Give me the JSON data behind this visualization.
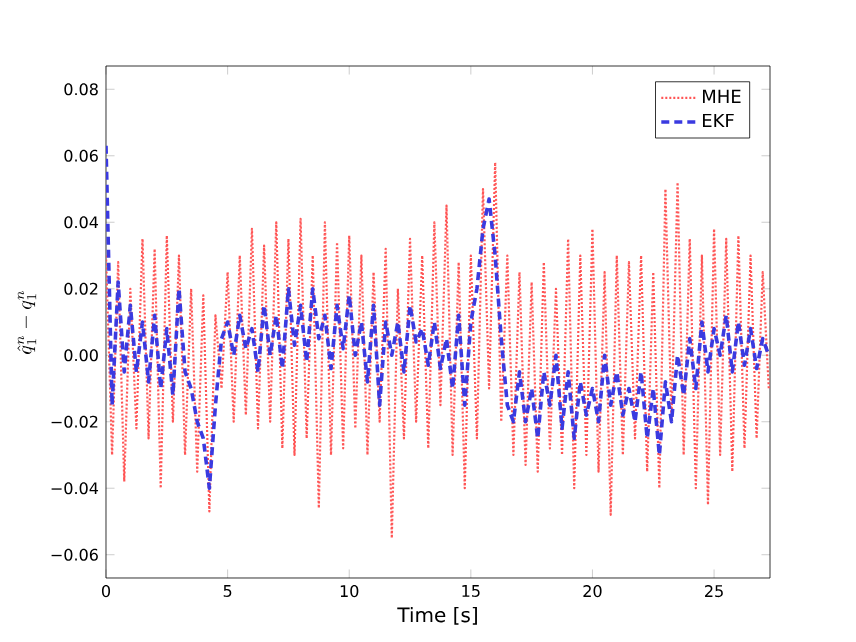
{
  "chart_data": {
    "type": "line",
    "xlabel": "Time [s]",
    "ylabel": "\\hat{q}_1^n - q_1^n",
    "x": [
      0,
      0.25,
      0.5,
      0.75,
      1,
      1.25,
      1.5,
      1.75,
      2,
      2.25,
      2.5,
      2.75,
      3,
      3.25,
      3.5,
      3.75,
      4,
      4.25,
      4.5,
      4.75,
      5,
      5.25,
      5.5,
      5.75,
      6,
      6.25,
      6.5,
      6.75,
      7,
      7.25,
      7.5,
      7.75,
      8,
      8.25,
      8.5,
      8.75,
      9,
      9.25,
      9.5,
      9.75,
      10,
      10.25,
      10.5,
      10.75,
      11,
      11.25,
      11.5,
      11.75,
      12,
      12.25,
      12.5,
      12.75,
      13,
      13.25,
      13.5,
      13.75,
      14,
      14.25,
      14.5,
      14.75,
      15,
      15.25,
      15.5,
      15.75,
      16,
      16.25,
      16.5,
      16.75,
      17,
      17.25,
      17.5,
      17.75,
      18,
      18.25,
      18.5,
      18.75,
      19,
      19.25,
      19.5,
      19.75,
      20,
      20.25,
      20.5,
      20.75,
      21,
      21.25,
      21.5,
      21.75,
      22,
      22.25,
      22.5,
      22.75,
      23,
      23.25,
      23.5,
      23.75,
      24,
      24.25,
      24.5,
      24.75,
      25,
      25.25,
      25.5,
      25.75,
      26,
      26.25,
      26.5,
      26.75,
      27,
      27.25
    ],
    "series": [
      {
        "name": "MHE",
        "color": "#ff5555",
        "line_style": "dotted",
        "values": [
          0.03,
          -0.03,
          0.028,
          -0.038,
          0.02,
          -0.022,
          0.035,
          -0.025,
          0.032,
          -0.04,
          0.036,
          -0.02,
          0.03,
          -0.03,
          0.02,
          -0.035,
          0.018,
          -0.047,
          0.012,
          -0.01,
          0.025,
          -0.02,
          0.03,
          -0.018,
          0.038,
          -0.022,
          0.033,
          -0.02,
          0.04,
          -0.028,
          0.035,
          -0.03,
          0.041,
          -0.025,
          0.03,
          -0.046,
          0.04,
          -0.03,
          0.034,
          -0.028,
          0.036,
          -0.022,
          0.03,
          -0.03,
          0.025,
          -0.02,
          0.032,
          -0.055,
          0.02,
          -0.025,
          0.035,
          -0.02,
          0.03,
          -0.028,
          0.04,
          -0.015,
          0.045,
          -0.03,
          0.028,
          -0.04,
          0.03,
          -0.025,
          0.05,
          -0.01,
          0.058,
          -0.02,
          0.03,
          -0.03,
          0.025,
          -0.033,
          0.022,
          -0.035,
          0.028,
          -0.028,
          0.02,
          -0.03,
          0.035,
          -0.04,
          0.03,
          -0.03,
          0.038,
          -0.035,
          0.025,
          -0.048,
          0.03,
          -0.03,
          0.028,
          -0.025,
          0.03,
          -0.035,
          0.025,
          -0.04,
          0.05,
          -0.02,
          0.052,
          -0.03,
          0.035,
          -0.04,
          0.03,
          -0.045,
          0.038,
          -0.03,
          0.035,
          -0.035,
          0.036,
          -0.028,
          0.03,
          -0.025,
          0.025,
          -0.01
        ]
      },
      {
        "name": "EKF",
        "color": "#3a3ae0",
        "line_style": "dashed",
        "values": [
          0.063,
          -0.015,
          0.022,
          -0.005,
          0.015,
          -0.005,
          0.01,
          -0.008,
          0.012,
          -0.01,
          0.008,
          -0.012,
          0.02,
          -0.005,
          -0.01,
          -0.02,
          -0.025,
          -0.04,
          -0.015,
          0.005,
          0.01,
          0.0,
          0.012,
          0.002,
          0.008,
          -0.005,
          0.015,
          0.0,
          0.012,
          -0.004,
          0.02,
          0.003,
          0.015,
          -0.002,
          0.02,
          0.005,
          0.012,
          -0.004,
          0.015,
          0.002,
          0.018,
          0.0,
          0.01,
          -0.008,
          0.015,
          -0.015,
          0.01,
          0.0,
          0.01,
          -0.005,
          0.015,
          0.004,
          0.008,
          -0.003,
          0.01,
          -0.004,
          0.005,
          -0.01,
          0.012,
          -0.015,
          0.01,
          0.02,
          0.038,
          0.047,
          0.03,
          0.005,
          -0.015,
          -0.02,
          -0.005,
          -0.02,
          -0.01,
          -0.025,
          -0.005,
          -0.015,
          0.0,
          -0.022,
          -0.005,
          -0.025,
          -0.008,
          -0.018,
          -0.01,
          -0.02,
          0.0,
          -0.015,
          -0.005,
          -0.018,
          -0.01,
          -0.02,
          -0.005,
          -0.025,
          -0.01,
          -0.03,
          -0.008,
          -0.02,
          0.0,
          -0.012,
          0.005,
          -0.01,
          0.01,
          -0.005,
          0.008,
          0.0,
          0.012,
          -0.005,
          0.01,
          -0.003,
          0.008,
          -0.004,
          0.005,
          0.0
        ]
      }
    ],
    "xlim": [
      0,
      27.3
    ],
    "ylim": [
      -0.067,
      0.087
    ],
    "xticks": [
      0,
      5,
      10,
      15,
      20,
      25
    ],
    "yticks": [
      {
        "value": -0.06,
        "label": "−0.06"
      },
      {
        "value": -0.04,
        "label": "−0.04"
      },
      {
        "value": -0.02,
        "label": "−0.02"
      },
      {
        "value": 0,
        "label": "0.00"
      },
      {
        "value": 0.02,
        "label": "0.02"
      },
      {
        "value": 0.04,
        "label": "0.04"
      },
      {
        "value": 0.06,
        "label": "0.06"
      },
      {
        "value": 0.08,
        "label": "0.08"
      }
    ],
    "legend": "top right",
    "grid": false,
    "marker": "none"
  }
}
